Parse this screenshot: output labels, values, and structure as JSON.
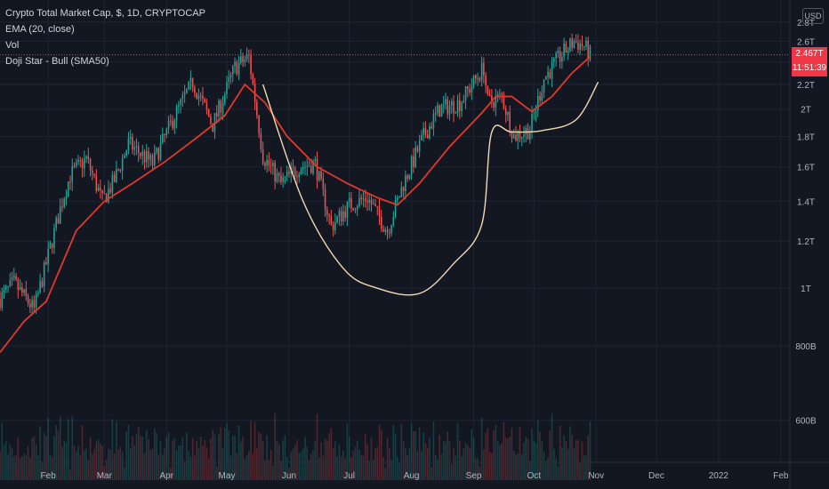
{
  "legend": {
    "title": "Crypto Total Market Cap, $, 1D, CRYPTOCAP",
    "indicators": [
      "EMA (20, close)",
      "Vol",
      "Doji Star - Bull (SMA50)"
    ]
  },
  "currency": "USD",
  "last_price": {
    "value": "2.467T",
    "countdown": "11:51:39"
  },
  "colors": {
    "up": "#26a69a",
    "down": "#ef5350",
    "ema": "#e0392b",
    "cup_drawing": "#f3d9b1",
    "last_price_line": "#f23645",
    "background": "#131722",
    "grid": "#1f2433",
    "axis_text": "#b2b5be"
  },
  "chart_data": {
    "type": "candlestick",
    "x_ticks": [
      "Feb",
      "Mar",
      "Apr",
      "May",
      "Jun",
      "Jul",
      "Aug",
      "Sep",
      "Oct",
      "Nov",
      "Dec",
      "2022",
      "Feb"
    ],
    "x_tick_dates": [
      "2021-02-01",
      "2021-03-01",
      "2021-04-01",
      "2021-05-01",
      "2021-06-01",
      "2021-07-01",
      "2021-08-01",
      "2021-09-01",
      "2021-10-01",
      "2021-11-01",
      "2021-12-01",
      "2022-01-01",
      "2022-02-01"
    ],
    "y_ticks": [
      "2.8T",
      "2.6T",
      "2.4T",
      "2.2T",
      "2T",
      "1.8T",
      "1.6T",
      "1.4T",
      "1.2T",
      "1T",
      "800B",
      "600B"
    ],
    "y_tick_values": [
      2.8,
      2.6,
      2.4,
      2.2,
      2.0,
      1.8,
      1.6,
      1.4,
      1.2,
      1.0,
      0.8,
      0.6
    ],
    "y_unit": "T (trillion USD)",
    "y_scale": "log",
    "x_range": [
      "2021-01-08",
      "2022-02-25"
    ],
    "y_range": [
      0.51,
      3.05
    ],
    "last_value": 2.467,
    "price_path": [
      {
        "date": "2021-01-08",
        "close": 0.96
      },
      {
        "date": "2021-01-15",
        "close": 1.02
      },
      {
        "date": "2021-01-25",
        "close": 0.92
      },
      {
        "date": "2021-02-08",
        "close": 1.4
      },
      {
        "date": "2021-02-12",
        "close": 1.55
      },
      {
        "date": "2021-02-20",
        "close": 1.65
      },
      {
        "date": "2021-02-28",
        "close": 1.4
      },
      {
        "date": "2021-03-06",
        "close": 1.52
      },
      {
        "date": "2021-03-13",
        "close": 1.75
      },
      {
        "date": "2021-03-25",
        "close": 1.62
      },
      {
        "date": "2021-04-05",
        "close": 1.95
      },
      {
        "date": "2021-04-14",
        "close": 2.22
      },
      {
        "date": "2021-04-24",
        "close": 1.88
      },
      {
        "date": "2021-05-05",
        "close": 2.35
      },
      {
        "date": "2021-05-12",
        "close": 2.45
      },
      {
        "date": "2021-05-19",
        "close": 1.67
      },
      {
        "date": "2021-05-28",
        "close": 1.5
      },
      {
        "date": "2021-06-06",
        "close": 1.6
      },
      {
        "date": "2021-06-14",
        "close": 1.62
      },
      {
        "date": "2021-06-22",
        "close": 1.27
      },
      {
        "date": "2021-07-01",
        "close": 1.38
      },
      {
        "date": "2021-07-10",
        "close": 1.42
      },
      {
        "date": "2021-07-20",
        "close": 1.25
      },
      {
        "date": "2021-07-28",
        "close": 1.5
      },
      {
        "date": "2021-08-07",
        "close": 1.8
      },
      {
        "date": "2021-08-15",
        "close": 2.0
      },
      {
        "date": "2021-08-25",
        "close": 2.05
      },
      {
        "date": "2021-09-06",
        "close": 2.35
      },
      {
        "date": "2021-09-08",
        "close": 2.05
      },
      {
        "date": "2021-09-15",
        "close": 2.1
      },
      {
        "date": "2021-09-21",
        "close": 1.8
      },
      {
        "date": "2021-09-29",
        "close": 1.85
      },
      {
        "date": "2021-10-06",
        "close": 2.25
      },
      {
        "date": "2021-10-14",
        "close": 2.45
      },
      {
        "date": "2021-10-21",
        "close": 2.6
      },
      {
        "date": "2021-10-26",
        "close": 2.55
      },
      {
        "date": "2021-10-29",
        "close": 2.467
      }
    ],
    "ema_20": [
      {
        "date": "2021-01-08",
        "value": 0.78
      },
      {
        "date": "2021-01-20",
        "value": 0.88
      },
      {
        "date": "2021-01-31",
        "value": 0.95
      },
      {
        "date": "2021-02-15",
        "value": 1.25
      },
      {
        "date": "2021-03-01",
        "value": 1.4
      },
      {
        "date": "2021-03-15",
        "value": 1.5
      },
      {
        "date": "2021-03-31",
        "value": 1.63
      },
      {
        "date": "2021-04-15",
        "value": 1.78
      },
      {
        "date": "2021-04-30",
        "value": 1.95
      },
      {
        "date": "2021-05-10",
        "value": 2.2
      },
      {
        "date": "2021-05-20",
        "value": 2.05
      },
      {
        "date": "2021-05-31",
        "value": 1.8
      },
      {
        "date": "2021-06-15",
        "value": 1.6
      },
      {
        "date": "2021-06-30",
        "value": 1.5
      },
      {
        "date": "2021-07-15",
        "value": 1.42
      },
      {
        "date": "2021-07-25",
        "value": 1.38
      },
      {
        "date": "2021-08-05",
        "value": 1.5
      },
      {
        "date": "2021-08-20",
        "value": 1.73
      },
      {
        "date": "2021-09-05",
        "value": 1.97
      },
      {
        "date": "2021-09-12",
        "value": 2.1
      },
      {
        "date": "2021-09-20",
        "value": 2.1
      },
      {
        "date": "2021-09-30",
        "value": 1.98
      },
      {
        "date": "2021-10-10",
        "value": 2.1
      },
      {
        "date": "2021-10-20",
        "value": 2.3
      },
      {
        "date": "2021-10-29",
        "value": 2.45
      }
    ],
    "cup_drawing": [
      {
        "date": "2021-05-19",
        "value": 2.2
      },
      {
        "date": "2021-06-08",
        "value": 1.4
      },
      {
        "date": "2021-06-28",
        "value": 1.08
      },
      {
        "date": "2021-07-15",
        "value": 1.0
      },
      {
        "date": "2021-08-05",
        "value": 0.98
      },
      {
        "date": "2021-08-22",
        "value": 1.1
      },
      {
        "date": "2021-09-05",
        "value": 1.28
      },
      {
        "date": "2021-09-10",
        "value": 1.83
      },
      {
        "date": "2021-09-20",
        "value": 1.83
      },
      {
        "date": "2021-10-05",
        "value": 1.84
      },
      {
        "date": "2021-10-22",
        "value": 1.92
      },
      {
        "date": "2021-11-02",
        "value": 2.22
      }
    ]
  }
}
